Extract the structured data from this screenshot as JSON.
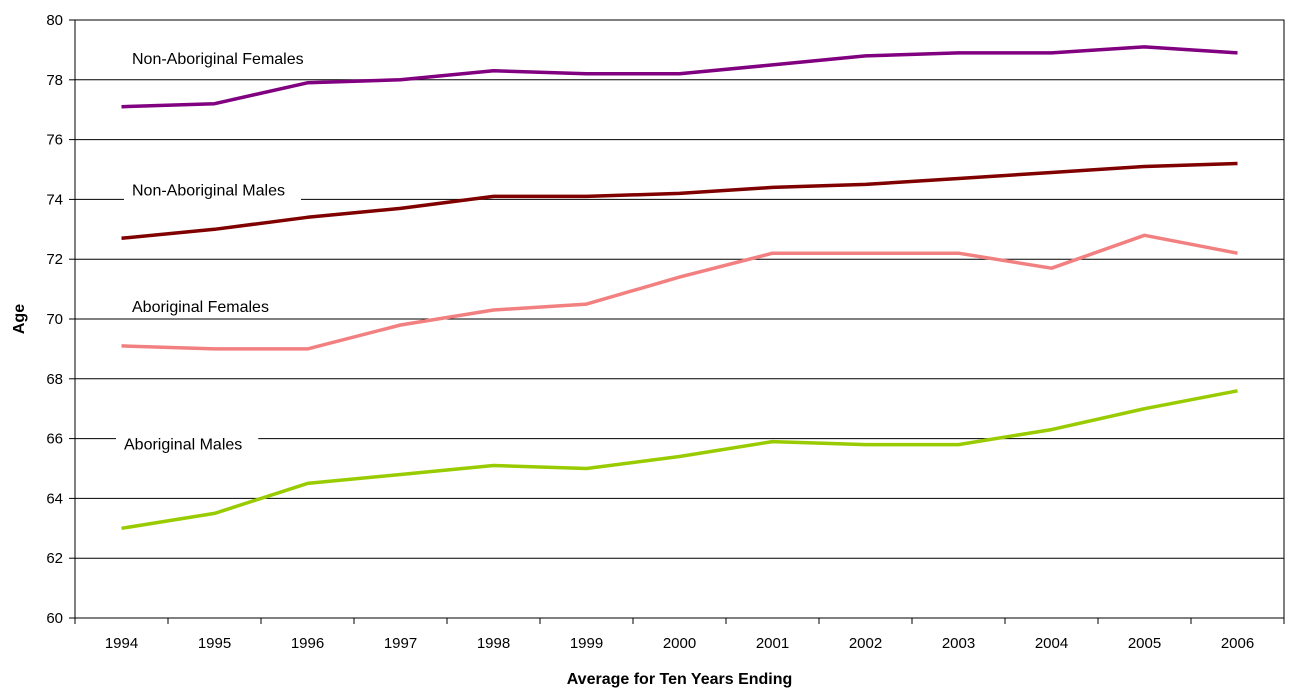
{
  "chart_data": {
    "type": "line",
    "title": "",
    "xlabel": "Average for Ten Years Ending",
    "ylabel": "Age",
    "ylim": [
      60,
      80
    ],
    "yticks": [
      60,
      62,
      64,
      66,
      68,
      70,
      72,
      74,
      76,
      78,
      80
    ],
    "grid": true,
    "legend": "inline labels",
    "categories": [
      "1994",
      "1995",
      "1996",
      "1997",
      "1998",
      "1999",
      "2000",
      "2001",
      "2002",
      "2003",
      "2004",
      "2005",
      "2006"
    ],
    "series": [
      {
        "name": "Non-Aboriginal Females",
        "color": "#800080",
        "values": [
          77.1,
          77.2,
          77.9,
          78.0,
          78.3,
          78.2,
          78.2,
          78.5,
          78.8,
          78.9,
          78.9,
          79.1,
          78.9
        ]
      },
      {
        "name": "Non-Aboriginal Males",
        "color": "#800000",
        "values": [
          72.7,
          73.0,
          73.4,
          73.7,
          74.1,
          74.1,
          74.2,
          74.4,
          74.5,
          74.7,
          74.9,
          75.1,
          75.2
        ]
      },
      {
        "name": "Aboriginal Females",
        "color": "#f28080",
        "values": [
          69.1,
          69.0,
          69.0,
          69.8,
          70.3,
          70.5,
          71.4,
          72.2,
          72.2,
          72.2,
          71.7,
          72.8,
          72.2
        ]
      },
      {
        "name": "Aboriginal Males",
        "color": "#99cc00",
        "values": [
          63.0,
          63.5,
          64.5,
          64.8,
          65.1,
          65.0,
          65.4,
          65.9,
          65.8,
          65.8,
          66.3,
          67.0,
          67.6
        ]
      }
    ]
  }
}
